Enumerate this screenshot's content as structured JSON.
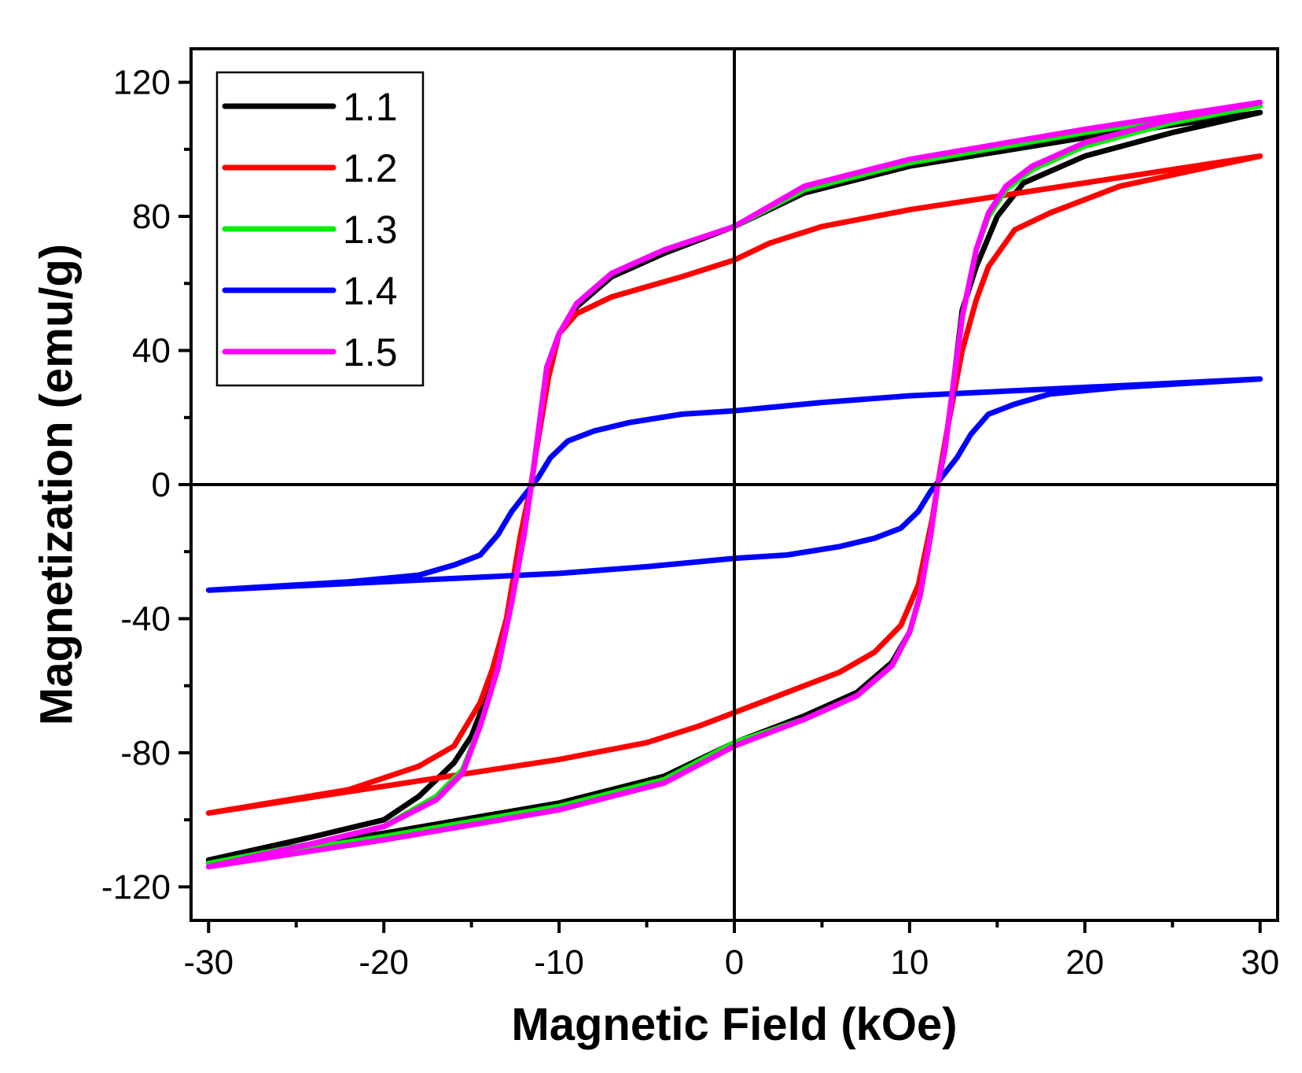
{
  "chart_data": {
    "type": "line",
    "xlabel": "Magnetic Field (kOe)",
    "ylabel": "Magnetization (emu/g)",
    "xlim": [
      -31,
      31
    ],
    "ylim": [
      -130,
      130
    ],
    "x_ticks": [
      -30,
      -20,
      -10,
      0,
      10,
      20,
      30
    ],
    "x_tick_labels": [
      "-30",
      "-20",
      "-10",
      "0",
      "10",
      "20",
      "30"
    ],
    "y_ticks": [
      -120,
      -80,
      -40,
      0,
      40,
      80,
      120
    ],
    "y_tick_labels": [
      "-120",
      "-80",
      "-40",
      "0",
      "40",
      "80",
      "120"
    ],
    "grid": false,
    "legend_position": "top-left",
    "series": [
      {
        "name": "1.1",
        "color": "#000000",
        "descending": [
          [
            30,
            111
          ],
          [
            20,
            103.5
          ],
          [
            10,
            95
          ],
          [
            4,
            87
          ],
          [
            0,
            77
          ],
          [
            -4,
            69
          ],
          [
            -7,
            62
          ],
          [
            -9,
            53
          ],
          [
            -10,
            45
          ],
          [
            -10.7,
            35
          ],
          [
            -11.2,
            15
          ],
          [
            -11.5,
            3
          ],
          [
            -12,
            -15
          ],
          [
            -12.7,
            -35
          ],
          [
            -13.5,
            -55
          ],
          [
            -15,
            -75
          ],
          [
            -16,
            -83
          ],
          [
            -18,
            -93
          ],
          [
            -20,
            -100
          ],
          [
            -24,
            -105
          ],
          [
            -30,
            -112
          ]
        ],
        "ascending": [
          [
            -30,
            -112
          ],
          [
            -20,
            -104
          ],
          [
            -10,
            -95
          ],
          [
            -4,
            -87
          ],
          [
            0,
            -77
          ],
          [
            4,
            -69
          ],
          [
            7,
            -62
          ],
          [
            9,
            -53
          ],
          [
            10,
            -44
          ],
          [
            10.6,
            -33
          ],
          [
            11.2,
            -15
          ],
          [
            11.6,
            0
          ],
          [
            12,
            10
          ],
          [
            12.5,
            30
          ],
          [
            13,
            52
          ],
          [
            13.8,
            65
          ],
          [
            15,
            80
          ],
          [
            16.5,
            90
          ],
          [
            20,
            98
          ],
          [
            25,
            105
          ],
          [
            30,
            111
          ]
        ]
      },
      {
        "name": "1.2",
        "color": "#ff0000",
        "descending": [
          [
            30,
            98
          ],
          [
            20,
            90
          ],
          [
            10,
            82
          ],
          [
            5,
            77
          ],
          [
            2,
            72
          ],
          [
            0,
            67
          ],
          [
            -3,
            62
          ],
          [
            -7,
            56
          ],
          [
            -9,
            51
          ],
          [
            -10,
            45
          ],
          [
            -10.6,
            32
          ],
          [
            -11.3,
            10
          ],
          [
            -11.6,
            0
          ],
          [
            -12.2,
            -15
          ],
          [
            -13,
            -40
          ],
          [
            -13.8,
            -55
          ],
          [
            -14.5,
            -65
          ],
          [
            -16,
            -78
          ],
          [
            -18,
            -84
          ],
          [
            -22,
            -91
          ],
          [
            -30,
            -98
          ]
        ],
        "ascending": [
          [
            -30,
            -98
          ],
          [
            -20,
            -90
          ],
          [
            -10,
            -82
          ],
          [
            -5,
            -77
          ],
          [
            -2,
            -72
          ],
          [
            0,
            -68
          ],
          [
            3,
            -62
          ],
          [
            6,
            -56
          ],
          [
            8,
            -50
          ],
          [
            9.5,
            -42
          ],
          [
            10.5,
            -30
          ],
          [
            11.3,
            -10
          ],
          [
            11.6,
            0
          ],
          [
            12.1,
            15
          ],
          [
            13,
            40
          ],
          [
            13.8,
            55
          ],
          [
            14.5,
            65
          ],
          [
            16,
            76
          ],
          [
            18,
            81
          ],
          [
            22,
            89
          ],
          [
            30,
            98
          ]
        ]
      },
      {
        "name": "1.3",
        "color": "#00ee00",
        "descending": [
          [
            30,
            113
          ],
          [
            20,
            105
          ],
          [
            10,
            96
          ],
          [
            4,
            88
          ],
          [
            0,
            77
          ],
          [
            -4,
            70
          ],
          [
            -7,
            63
          ],
          [
            -9,
            54
          ],
          [
            -10,
            45
          ],
          [
            -10.7,
            35
          ],
          [
            -11.2,
            15
          ],
          [
            -11.5,
            3
          ],
          [
            -12,
            -15
          ],
          [
            -12.7,
            -35
          ],
          [
            -13.5,
            -55
          ],
          [
            -14.5,
            -72
          ],
          [
            -15.5,
            -85
          ],
          [
            -17,
            -93
          ],
          [
            -20,
            -102
          ],
          [
            -24,
            -107
          ],
          [
            -30,
            -113
          ]
        ],
        "ascending": [
          [
            -30,
            -113
          ],
          [
            -20,
            -105
          ],
          [
            -10,
            -96
          ],
          [
            -4,
            -88
          ],
          [
            0,
            -77
          ],
          [
            4,
            -70
          ],
          [
            7,
            -63
          ],
          [
            9,
            -54
          ],
          [
            10,
            -44
          ],
          [
            10.6,
            -33
          ],
          [
            11.2,
            -15
          ],
          [
            11.6,
            0
          ],
          [
            12,
            10
          ],
          [
            12.5,
            30
          ],
          [
            13,
            50
          ],
          [
            13.8,
            70
          ],
          [
            14.5,
            80
          ],
          [
            15.5,
            88
          ],
          [
            17,
            94
          ],
          [
            20,
            101
          ],
          [
            25,
            108
          ],
          [
            30,
            113
          ]
        ]
      },
      {
        "name": "1.4",
        "color": "#0000ff",
        "descending": [
          [
            30,
            31.5
          ],
          [
            20,
            29
          ],
          [
            10,
            26.5
          ],
          [
            5,
            24.5
          ],
          [
            0,
            22
          ],
          [
            -3,
            21
          ],
          [
            -6,
            18.5
          ],
          [
            -8,
            16
          ],
          [
            -9.5,
            13
          ],
          [
            -10.5,
            8
          ],
          [
            -11.2,
            2
          ],
          [
            -11.8,
            -2
          ],
          [
            -12.7,
            -8
          ],
          [
            -13.5,
            -15
          ],
          [
            -14.5,
            -21
          ],
          [
            -16,
            -24
          ],
          [
            -18,
            -27
          ],
          [
            -22,
            -29
          ],
          [
            -30,
            -31.5
          ]
        ],
        "ascending": [
          [
            -30,
            -31.5
          ],
          [
            -20,
            -29
          ],
          [
            -10,
            -26.5
          ],
          [
            -5,
            -24.5
          ],
          [
            0,
            -22
          ],
          [
            3,
            -21
          ],
          [
            6,
            -18.5
          ],
          [
            8,
            -16
          ],
          [
            9.5,
            -13
          ],
          [
            10.5,
            -8
          ],
          [
            11.2,
            -2
          ],
          [
            11.8,
            2
          ],
          [
            12.7,
            8
          ],
          [
            13.5,
            15
          ],
          [
            14.5,
            21
          ],
          [
            16,
            24
          ],
          [
            18,
            27
          ],
          [
            22,
            29
          ],
          [
            30,
            31.5
          ]
        ]
      },
      {
        "name": "1.5",
        "color": "#ff00ff",
        "descending": [
          [
            30,
            114
          ],
          [
            20,
            106
          ],
          [
            10,
            97
          ],
          [
            4,
            89
          ],
          [
            0,
            77
          ],
          [
            -4,
            70
          ],
          [
            -7,
            63
          ],
          [
            -9,
            54
          ],
          [
            -10,
            45
          ],
          [
            -10.7,
            35
          ],
          [
            -11.2,
            15
          ],
          [
            -11.5,
            3
          ],
          [
            -12,
            -15
          ],
          [
            -12.7,
            -35
          ],
          [
            -13.5,
            -55
          ],
          [
            -14.5,
            -72
          ],
          [
            -15.5,
            -86
          ],
          [
            -17,
            -94
          ],
          [
            -20,
            -102
          ],
          [
            -24,
            -107
          ],
          [
            -30,
            -114
          ]
        ],
        "ascending": [
          [
            -30,
            -114
          ],
          [
            -20,
            -106
          ],
          [
            -10,
            -97
          ],
          [
            -4,
            -89
          ],
          [
            0,
            -78
          ],
          [
            4,
            -70
          ],
          [
            7,
            -63
          ],
          [
            9,
            -54
          ],
          [
            10,
            -44
          ],
          [
            10.6,
            -33
          ],
          [
            11.2,
            -15
          ],
          [
            11.6,
            0
          ],
          [
            12,
            10
          ],
          [
            12.5,
            30
          ],
          [
            13,
            50
          ],
          [
            13.8,
            70
          ],
          [
            14.5,
            81
          ],
          [
            15.5,
            89
          ],
          [
            17,
            95
          ],
          [
            20,
            102
          ],
          [
            25,
            109
          ],
          [
            30,
            114
          ]
        ]
      }
    ]
  }
}
